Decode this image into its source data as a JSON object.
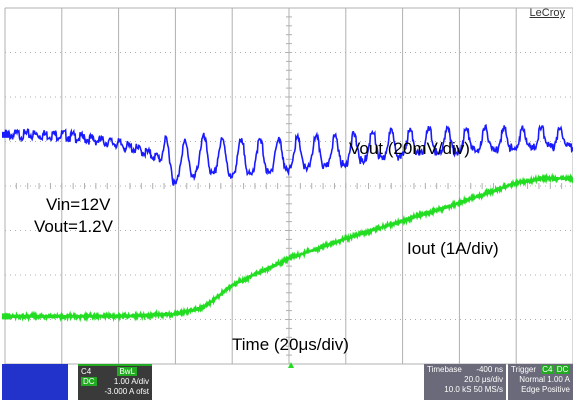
{
  "brand": "LeCroy",
  "annotations": {
    "vout_label": "Vout (20mV/div)",
    "vin": "Vin=12V",
    "vout_set": "Vout=1.2V",
    "iout_label": "Iout (1A/div)",
    "time_label": "Time (20μs/div)"
  },
  "status_bar": {
    "ch4": {
      "title": "C4",
      "badges": [
        "BwL",
        "DC"
      ],
      "rows": [
        "1.00 A/div",
        "-3.000 A ofst"
      ]
    },
    "timebase": {
      "title": "Timebase",
      "offset": "-400 ns",
      "rows": [
        "20.0 μs/div",
        "10.0 kS   50 MS/s"
      ]
    },
    "trigger": {
      "title": "Trigger",
      "badges": [
        "C4",
        "DC"
      ],
      "rows": [
        "Normal     1.00 A",
        "Edge     Positive"
      ]
    }
  },
  "colors": {
    "vout_trace": "#1a1aff",
    "iout_trace": "#22dd22",
    "grid": "#b0b0b0"
  },
  "chart_data": {
    "type": "line",
    "title": "",
    "xlabel": "Time (20μs/div)",
    "grid": true,
    "x_divisions": 10,
    "y_divisions": 8,
    "x_unit": "μs",
    "x_per_div": 20,
    "series": [
      {
        "name": "Vout (20mV/div)",
        "unit": "mV",
        "per_div": 20,
        "description": "Output voltage: flat, dip and damped ringing during load step",
        "x": [
          0,
          20,
          30,
          40,
          50,
          60,
          70,
          80,
          90,
          100,
          110,
          120,
          130,
          140,
          150,
          160,
          170,
          180,
          190,
          200
        ],
        "y": [
          0,
          0,
          -2,
          -4,
          -8,
          -14,
          -10,
          -12,
          -11,
          -10,
          -9,
          -8,
          -6,
          -5,
          -4,
          -4,
          -3,
          -3,
          -2,
          -2
        ]
      },
      {
        "name": "Iout (1A/div)",
        "unit": "A",
        "per_div": 1,
        "description": "Load current ramp",
        "x": [
          0,
          20,
          40,
          60,
          70,
          80,
          100,
          120,
          140,
          160,
          180,
          190,
          200
        ],
        "y": [
          0,
          0,
          0,
          0.05,
          0.2,
          0.7,
          1.3,
          1.75,
          2.15,
          2.55,
          3.0,
          3.1,
          3.1
        ]
      }
    ]
  }
}
